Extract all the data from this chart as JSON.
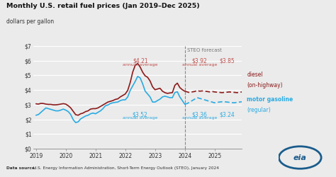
{
  "title": "Monthly U.S. retail fuel prices (Jan 2019–Dec 2025)",
  "subtitle": "dollars per gallon",
  "datasource_bold": "Data source:",
  "datasource_normal": " U.S. Energy Information Administration, ",
  "datasource_italic": "Short-Term Energy Outlook",
  "datasource_end": " (STEO), January 2024",
  "forecast_label": "STEO forecast",
  "forecast_start": 2024.0,
  "diesel_label_line1": "diesel",
  "diesel_label_line2": "(on-highway)",
  "gas_label_line1": "motor gasoline",
  "gas_label_line2": "(regular)",
  "diesel_color": "#8B1A1A",
  "gas_color": "#29ABE2",
  "annotation_diesel_color": "#c0504d",
  "annotation_gas_color": "#29ABE2",
  "bg_color": "#ebebeb",
  "plot_bg": "#ebebeb",
  "ylim": [
    0,
    7
  ],
  "yticks": [
    0,
    1,
    2,
    3,
    4,
    5,
    6,
    7
  ],
  "ytick_labels": [
    "$0",
    "$1",
    "$2",
    "$3",
    "$4",
    "$5",
    "$6",
    "$7"
  ],
  "xticks": [
    2019,
    2020,
    2021,
    2022,
    2023,
    2024,
    2025
  ],
  "xtick_labels": [
    "2019",
    "2020",
    "2021",
    "2022",
    "2023",
    "2024",
    "2025"
  ],
  "diesel_data_x": [
    2019.0,
    2019.083,
    2019.167,
    2019.25,
    2019.333,
    2019.417,
    2019.5,
    2019.583,
    2019.667,
    2019.75,
    2019.833,
    2019.917,
    2020.0,
    2020.083,
    2020.167,
    2020.25,
    2020.333,
    2020.417,
    2020.5,
    2020.583,
    2020.667,
    2020.75,
    2020.833,
    2020.917,
    2021.0,
    2021.083,
    2021.167,
    2021.25,
    2021.333,
    2021.417,
    2021.5,
    2021.583,
    2021.667,
    2021.75,
    2021.833,
    2021.917,
    2022.0,
    2022.083,
    2022.167,
    2022.25,
    2022.333,
    2022.417,
    2022.5,
    2022.583,
    2022.667,
    2022.75,
    2022.833,
    2022.917,
    2023.0,
    2023.083,
    2023.167,
    2023.25,
    2023.333,
    2023.417,
    2023.5,
    2023.583,
    2023.667,
    2023.75,
    2023.833,
    2023.917,
    2024.0,
    2024.083,
    2024.167,
    2024.25,
    2024.333,
    2024.417,
    2024.5,
    2024.583,
    2024.667,
    2024.75,
    2024.833,
    2024.917,
    2025.0,
    2025.083,
    2025.167,
    2025.25,
    2025.333,
    2025.417,
    2025.5,
    2025.583,
    2025.667,
    2025.75,
    2025.833,
    2025.917
  ],
  "diesel_data_y": [
    3.06,
    3.04,
    3.09,
    3.08,
    3.04,
    3.02,
    3.02,
    2.99,
    2.99,
    3.01,
    3.04,
    3.07,
    3.04,
    2.93,
    2.78,
    2.55,
    2.32,
    2.28,
    2.38,
    2.43,
    2.53,
    2.58,
    2.7,
    2.73,
    2.73,
    2.78,
    2.88,
    2.98,
    3.08,
    3.18,
    3.23,
    3.28,
    3.36,
    3.4,
    3.53,
    3.63,
    3.73,
    3.98,
    4.52,
    5.22,
    5.68,
    5.81,
    5.57,
    5.22,
    4.97,
    4.87,
    4.62,
    4.22,
    4.02,
    4.07,
    4.12,
    3.92,
    3.82,
    3.77,
    3.8,
    3.82,
    4.32,
    4.47,
    4.17,
    4.02,
    3.92,
    3.87,
    3.82,
    3.87,
    3.9,
    3.97,
    3.92,
    3.94,
    3.92,
    3.9,
    3.87,
    3.9,
    3.87,
    3.85,
    3.84,
    3.82,
    3.84,
    3.85,
    3.87,
    3.85,
    3.84,
    3.82,
    3.84,
    3.87
  ],
  "gas_data_x": [
    2019.0,
    2019.083,
    2019.167,
    2019.25,
    2019.333,
    2019.417,
    2019.5,
    2019.583,
    2019.667,
    2019.75,
    2019.833,
    2019.917,
    2020.0,
    2020.083,
    2020.167,
    2020.25,
    2020.333,
    2020.417,
    2020.5,
    2020.583,
    2020.667,
    2020.75,
    2020.833,
    2020.917,
    2021.0,
    2021.083,
    2021.167,
    2021.25,
    2021.333,
    2021.417,
    2021.5,
    2021.583,
    2021.667,
    2021.75,
    2021.833,
    2021.917,
    2022.0,
    2022.083,
    2022.167,
    2022.25,
    2022.333,
    2022.417,
    2022.5,
    2022.583,
    2022.667,
    2022.75,
    2022.833,
    2022.917,
    2023.0,
    2023.083,
    2023.167,
    2023.25,
    2023.333,
    2023.417,
    2023.5,
    2023.583,
    2023.667,
    2023.75,
    2023.833,
    2023.917,
    2024.0,
    2024.083,
    2024.167,
    2024.25,
    2024.333,
    2024.417,
    2024.5,
    2024.583,
    2024.667,
    2024.75,
    2024.833,
    2024.917,
    2025.0,
    2025.083,
    2025.167,
    2025.25,
    2025.333,
    2025.417,
    2025.5,
    2025.583,
    2025.667,
    2025.75,
    2025.833,
    2025.917
  ],
  "gas_data_y": [
    2.28,
    2.33,
    2.48,
    2.63,
    2.78,
    2.73,
    2.68,
    2.63,
    2.58,
    2.58,
    2.63,
    2.7,
    2.63,
    2.53,
    2.33,
    1.98,
    1.78,
    1.83,
    2.03,
    2.13,
    2.23,
    2.28,
    2.38,
    2.43,
    2.38,
    2.48,
    2.58,
    2.73,
    2.93,
    2.98,
    3.08,
    3.13,
    3.16,
    3.18,
    3.28,
    3.33,
    3.33,
    3.53,
    3.98,
    4.28,
    4.58,
    4.93,
    4.83,
    4.43,
    3.93,
    3.73,
    3.53,
    3.18,
    3.18,
    3.28,
    3.38,
    3.53,
    3.58,
    3.53,
    3.48,
    3.48,
    3.83,
    3.88,
    3.53,
    3.28,
    3.03,
    3.08,
    3.18,
    3.28,
    3.38,
    3.48,
    3.43,
    3.38,
    3.33,
    3.28,
    3.23,
    3.18,
    3.13,
    3.16,
    3.18,
    3.2,
    3.2,
    3.18,
    3.16,
    3.14,
    3.13,
    3.16,
    3.18,
    3.2
  ]
}
